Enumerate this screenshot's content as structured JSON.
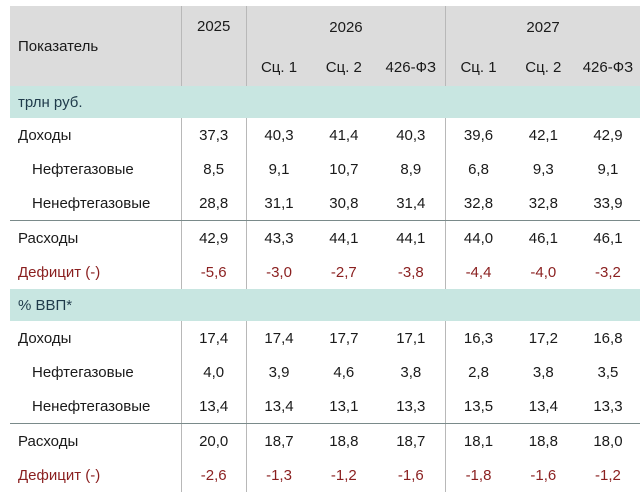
{
  "header": {
    "indicator": "Показатель",
    "years": [
      "2025",
      "2026",
      "2027"
    ],
    "sub": [
      "Сц. 1",
      "Сц. 2",
      "426-ФЗ",
      "Сц. 1",
      "Сц. 2",
      "426-ФЗ"
    ]
  },
  "sections": [
    {
      "title": "трлн руб.",
      "rows": [
        {
          "label": "Доходы",
          "values": [
            "37,3",
            "40,3",
            "41,4",
            "40,3",
            "39,6",
            "42,1",
            "42,9"
          ]
        },
        {
          "label": "Нефтегазовые",
          "values": [
            "8,5",
            "9,1",
            "10,7",
            "8,9",
            "6,8",
            "9,3",
            "9,1"
          ]
        },
        {
          "label": "Ненефтегазовые",
          "values": [
            "28,8",
            "31,1",
            "30,8",
            "31,4",
            "32,8",
            "32,8",
            "33,9"
          ]
        },
        {
          "label": "Расходы",
          "values": [
            "42,9",
            "43,3",
            "44,1",
            "44,1",
            "44,0",
            "46,1",
            "46,1"
          ]
        },
        {
          "label": "Дефицит (-)",
          "values": [
            "-5,6",
            "-3,0",
            "-2,7",
            "-3,8",
            "-4,4",
            "-4,0",
            "-3,2"
          ]
        }
      ]
    },
    {
      "title": "% ВВП*",
      "rows": [
        {
          "label": "Доходы",
          "values": [
            "17,4",
            "17,4",
            "17,7",
            "17,1",
            "16,3",
            "17,2",
            "16,8"
          ]
        },
        {
          "label": "Нефтегазовые",
          "values": [
            "4,0",
            "3,9",
            "4,6",
            "3,8",
            "2,8",
            "3,8",
            "3,5"
          ]
        },
        {
          "label": "Ненефтегазовые",
          "values": [
            "13,4",
            "13,4",
            "13,1",
            "13,3",
            "13,5",
            "13,4",
            "13,3"
          ]
        },
        {
          "label": "Расходы",
          "values": [
            "20,0",
            "18,7",
            "18,8",
            "18,7",
            "18,1",
            "18,8",
            "18,0"
          ]
        },
        {
          "label": "Дефицит (-)",
          "values": [
            "-2,6",
            "-1,3",
            "-1,2",
            "-1,6",
            "-1,8",
            "-1,6",
            "-1,2"
          ]
        }
      ]
    }
  ],
  "colors": {
    "header_bg": "#dcdcdc",
    "section_bg": "#c8e6e1",
    "deficit": "#8a1f1f"
  }
}
